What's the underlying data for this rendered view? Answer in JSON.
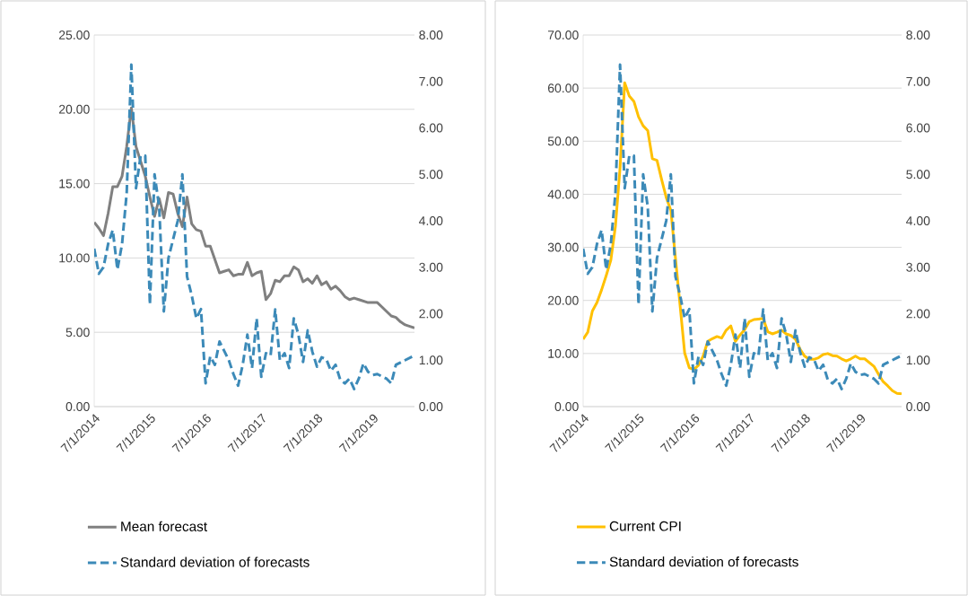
{
  "chart_data": [
    {
      "type": "line",
      "x": [
        "2014-07",
        "2014-08",
        "2014-09",
        "2014-10",
        "2014-11",
        "2014-12",
        "2015-01",
        "2015-02",
        "2015-03",
        "2015-04",
        "2015-05",
        "2015-06",
        "2015-07",
        "2015-08",
        "2015-09",
        "2015-10",
        "2015-11",
        "2015-12",
        "2016-01",
        "2016-02",
        "2016-03",
        "2016-04",
        "2016-05",
        "2016-06",
        "2016-07",
        "2016-08",
        "2016-09",
        "2016-10",
        "2016-11",
        "2016-12",
        "2017-01",
        "2017-02",
        "2017-03",
        "2017-04",
        "2017-05",
        "2017-06",
        "2017-07",
        "2017-08",
        "2017-09",
        "2017-10",
        "2017-11",
        "2017-12",
        "2018-01",
        "2018-02",
        "2018-03",
        "2018-04",
        "2018-05",
        "2018-06",
        "2018-07",
        "2018-08",
        "2018-09",
        "2018-10",
        "2018-11",
        "2018-12",
        "2019-01",
        "2019-02",
        "2019-03",
        "2019-04",
        "2019-05",
        "2019-06",
        "2019-07",
        "2019-08",
        "2019-09",
        "2019-10",
        "2019-11",
        "2019-12",
        "2020-01",
        "2020-02",
        "2020-03",
        "2020-04"
      ],
      "series": [
        {
          "name": "Mean forecast",
          "color": "#808080",
          "line_style": "solid",
          "values": [
            12.4,
            12.0,
            11.5,
            13.0,
            14.8,
            14.8,
            15.5,
            17.5,
            20.1,
            17.5,
            16.5,
            15.5,
            14.1,
            12.8,
            14.0,
            12.7,
            14.4,
            14.3,
            13.0,
            12.1,
            14.1,
            12.3,
            11.9,
            11.8,
            10.8,
            10.8,
            9.9,
            9.0,
            9.1,
            9.2,
            8.8,
            8.9,
            8.9,
            9.7,
            8.8,
            9.0,
            9.1,
            7.2,
            7.6,
            8.5,
            8.4,
            8.8,
            8.8,
            9.4,
            9.2,
            8.4,
            8.6,
            8.3,
            8.8,
            8.2,
            8.4,
            7.9,
            8.1,
            7.8,
            7.4,
            7.2,
            7.3,
            7.2,
            7.1,
            7.0,
            7.0,
            7.0,
            6.7,
            6.4,
            6.1,
            6.0,
            5.7,
            5.5,
            5.4,
            5.3
          ]
        },
        {
          "name": "Standard deviation of forecasts",
          "color": "#3c8ab8",
          "line_style": "dashed",
          "axis": "y2",
          "values": [
            3.4,
            2.86,
            3.0,
            3.5,
            3.8,
            2.95,
            3.5,
            4.6,
            7.36,
            4.7,
            5.4,
            5.4,
            2.2,
            5.0,
            4.3,
            2.05,
            3.2,
            3.6,
            4.0,
            5.0,
            2.8,
            2.4,
            1.9,
            2.1,
            0.5,
            1.08,
            0.9,
            1.4,
            1.2,
            1.0,
            0.7,
            0.45,
            0.9,
            1.55,
            0.83,
            1.9,
            0.64,
            1.15,
            1.1,
            2.09,
            1.0,
            1.15,
            0.83,
            1.9,
            1.55,
            0.96,
            1.64,
            1.18,
            0.86,
            1.06,
            1.02,
            0.77,
            0.9,
            0.58,
            0.5,
            0.6,
            0.38,
            0.6,
            0.93,
            0.75,
            0.68,
            0.7,
            0.65,
            0.6,
            0.5,
            0.9,
            0.95,
            1.0,
            1.05,
            1.1
          ]
        }
      ],
      "xlim": [
        "2014-07",
        "2020-04"
      ],
      "xticks": [
        {
          "value": "2014-07",
          "label": "7/1/2014"
        },
        {
          "value": "2015-07",
          "label": "7/1/2015"
        },
        {
          "value": "2016-07",
          "label": "7/1/2016"
        },
        {
          "value": "2017-07",
          "label": "7/1/2017"
        },
        {
          "value": "2018-07",
          "label": "7/1/2018"
        },
        {
          "value": "2019-07",
          "label": "7/1/2019"
        }
      ],
      "ylim": [
        0,
        25
      ],
      "yticks": [
        {
          "value": 0,
          "label": "0.00"
        },
        {
          "value": 5,
          "label": "5.00"
        },
        {
          "value": 10,
          "label": "10.00"
        },
        {
          "value": 15,
          "label": "15.00"
        },
        {
          "value": 20,
          "label": "20.00"
        },
        {
          "value": 25,
          "label": "25.00"
        }
      ],
      "y2lim": [
        0,
        8
      ],
      "y2ticks": [
        {
          "value": 0,
          "label": "0.00"
        },
        {
          "value": 1,
          "label": "1.00"
        },
        {
          "value": 2,
          "label": "2.00"
        },
        {
          "value": 3,
          "label": "3.00"
        },
        {
          "value": 4,
          "label": "4.00"
        },
        {
          "value": 5,
          "label": "5.00"
        },
        {
          "value": 6,
          "label": "6.00"
        },
        {
          "value": 7,
          "label": "7.00"
        },
        {
          "value": 8,
          "label": "8.00"
        }
      ],
      "grid": "y",
      "legend": "bottom"
    },
    {
      "type": "line",
      "x": [
        "2014-07",
        "2014-08",
        "2014-09",
        "2014-10",
        "2014-11",
        "2014-12",
        "2015-01",
        "2015-02",
        "2015-03",
        "2015-04",
        "2015-05",
        "2015-06",
        "2015-07",
        "2015-08",
        "2015-09",
        "2015-10",
        "2015-11",
        "2015-12",
        "2016-01",
        "2016-02",
        "2016-03",
        "2016-04",
        "2016-05",
        "2016-06",
        "2016-07",
        "2016-08",
        "2016-09",
        "2016-10",
        "2016-11",
        "2016-12",
        "2017-01",
        "2017-02",
        "2017-03",
        "2017-04",
        "2017-05",
        "2017-06",
        "2017-07",
        "2017-08",
        "2017-09",
        "2017-10",
        "2017-11",
        "2017-12",
        "2018-01",
        "2018-02",
        "2018-03",
        "2018-04",
        "2018-05",
        "2018-06",
        "2018-07",
        "2018-08",
        "2018-09",
        "2018-10",
        "2018-11",
        "2018-12",
        "2019-01",
        "2019-02",
        "2019-03",
        "2019-04",
        "2019-05",
        "2019-06",
        "2019-07",
        "2019-08",
        "2019-09",
        "2019-10",
        "2019-11",
        "2019-12",
        "2020-01",
        "2020-02",
        "2020-03",
        "2020-04"
      ],
      "series": [
        {
          "name": "Current CPI",
          "color": "#ffc000",
          "line_style": "solid",
          "values": [
            12.7,
            14.0,
            18.0,
            19.6,
            22.0,
            24.7,
            27.6,
            34.0,
            45.0,
            61.0,
            58.5,
            57.5,
            54.6,
            52.9,
            52.0,
            46.7,
            46.4,
            42.8,
            39.4,
            37.0,
            28.0,
            19.1,
            10.1,
            7.3,
            7.0,
            7.8,
            9.5,
            12.3,
            12.8,
            13.2,
            12.9,
            14.4,
            15.2,
            12.3,
            13.5,
            14.5,
            16.0,
            16.4,
            16.5,
            16.6,
            14.1,
            13.7,
            14.0,
            14.4,
            13.7,
            13.4,
            12.7,
            10.8,
            9.5,
            8.9,
            8.9,
            9.2,
            9.8,
            10.0,
            9.6,
            9.5,
            9.0,
            8.6,
            9.0,
            9.5,
            9.0,
            9.0,
            8.3,
            7.6,
            6.1,
            4.7,
            3.9,
            3.0,
            2.5,
            2.4
          ]
        },
        {
          "name": "Standard deviation of forecasts",
          "color": "#3c8ab8",
          "line_style": "dashed",
          "axis": "y2",
          "values": [
            3.4,
            2.86,
            3.0,
            3.5,
            3.8,
            2.95,
            3.5,
            4.6,
            7.36,
            4.7,
            5.4,
            5.4,
            2.2,
            5.0,
            4.3,
            2.05,
            3.2,
            3.6,
            4.0,
            5.0,
            2.8,
            2.4,
            1.9,
            2.1,
            0.5,
            1.08,
            0.9,
            1.4,
            1.2,
            1.0,
            0.7,
            0.45,
            0.9,
            1.55,
            0.83,
            1.9,
            0.64,
            1.15,
            1.1,
            2.09,
            1.0,
            1.15,
            0.83,
            1.9,
            1.55,
            0.96,
            1.64,
            1.18,
            0.86,
            1.06,
            1.02,
            0.77,
            0.9,
            0.58,
            0.5,
            0.6,
            0.38,
            0.6,
            0.93,
            0.75,
            0.68,
            0.7,
            0.65,
            0.6,
            0.5,
            0.9,
            0.95,
            1.0,
            1.05,
            1.1
          ]
        }
      ],
      "xlim": [
        "2014-07",
        "2020-04"
      ],
      "xticks": [
        {
          "value": "2014-07",
          "label": "7/1/2014"
        },
        {
          "value": "2015-07",
          "label": "7/1/2015"
        },
        {
          "value": "2016-07",
          "label": "7/1/2016"
        },
        {
          "value": "2017-07",
          "label": "7/1/2017"
        },
        {
          "value": "2018-07",
          "label": "7/1/2018"
        },
        {
          "value": "2019-07",
          "label": "7/1/2019"
        }
      ],
      "ylim": [
        0,
        70
      ],
      "yticks": [
        {
          "value": 0,
          "label": "0.00"
        },
        {
          "value": 10,
          "label": "10.00"
        },
        {
          "value": 20,
          "label": "20.00"
        },
        {
          "value": 30,
          "label": "30.00"
        },
        {
          "value": 40,
          "label": "40.00"
        },
        {
          "value": 50,
          "label": "50.00"
        },
        {
          "value": 60,
          "label": "60.00"
        },
        {
          "value": 70,
          "label": "70.00"
        }
      ],
      "y2lim": [
        0,
        8
      ],
      "y2ticks": [
        {
          "value": 0,
          "label": "0.00"
        },
        {
          "value": 1,
          "label": "1.00"
        },
        {
          "value": 2,
          "label": "2.00"
        },
        {
          "value": 3,
          "label": "3.00"
        },
        {
          "value": 4,
          "label": "4.00"
        },
        {
          "value": 5,
          "label": "5.00"
        },
        {
          "value": 6,
          "label": "6.00"
        },
        {
          "value": 7,
          "label": "7.00"
        },
        {
          "value": 8,
          "label": "8.00"
        }
      ],
      "grid": "y",
      "legend": "bottom"
    }
  ]
}
